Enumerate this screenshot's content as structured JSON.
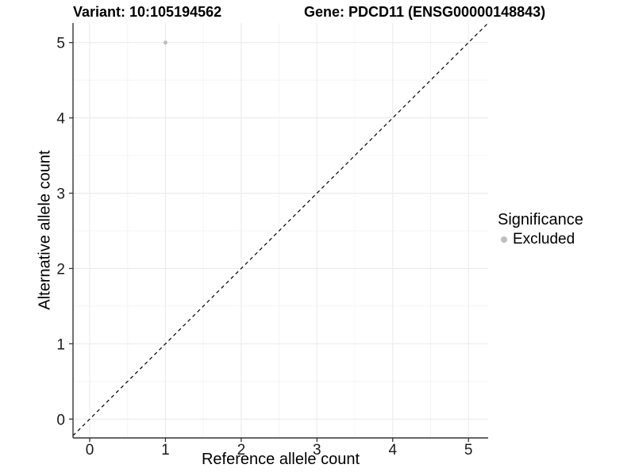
{
  "titles": {
    "left": "Variant: 10:105194562",
    "right": "Gene: PDCD11 (ENSG00000148843)"
  },
  "chart_data": {
    "type": "scatter",
    "titles": [
      "Variant: 10:105194562",
      "Gene: PDCD11 (ENSG00000148843)"
    ],
    "xlabel": "Reference allele count",
    "ylabel": "Alternative allele count",
    "xlim": [
      -0.22,
      5.26
    ],
    "ylim": [
      -0.25,
      5.26
    ],
    "xticks": [
      0,
      1,
      2,
      3,
      4,
      5
    ],
    "yticks": [
      0,
      1,
      2,
      3,
      4,
      5
    ],
    "minor_step": 0.5,
    "grid": true,
    "points": [
      {
        "x": 1,
        "y": 5,
        "series": "Excluded"
      }
    ],
    "reference_line": {
      "type": "identity",
      "equation": "y = x",
      "style": "dashed"
    },
    "legend": {
      "title": "Significance",
      "position": "right",
      "entries": [
        {
          "label": "Excluded",
          "color": "#bebebe"
        }
      ]
    },
    "colors": {
      "point": "#bebebe",
      "grid_major": "#ebebeb",
      "grid_minor": "#f4f4f4",
      "axis_line": "#333333",
      "tick_text": "#1a1a1a",
      "reference_line": "#000000"
    }
  }
}
